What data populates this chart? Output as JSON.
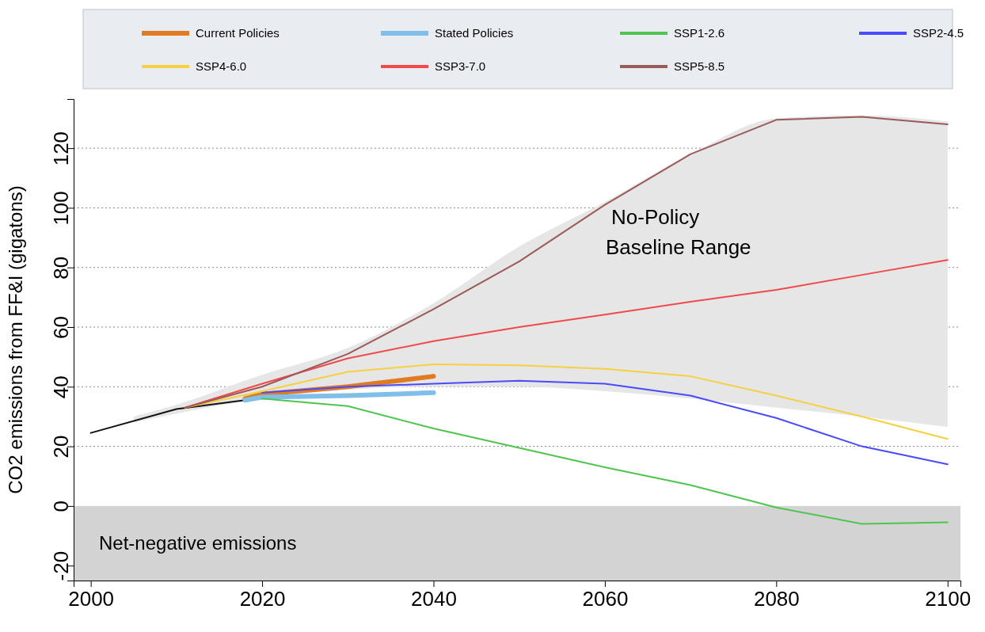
{
  "chart_data": {
    "type": "line",
    "ylabel": "CO2 emissions from FF&I (gigatons)",
    "xlim": [
      1998,
      2101.5
    ],
    "ylim": [
      -25,
      136.5
    ],
    "xticks": [
      2000,
      2020,
      2040,
      2060,
      2080,
      2100
    ],
    "yticks": [
      -20,
      0,
      20,
      40,
      60,
      80,
      100,
      120
    ],
    "grid": "y",
    "legend": "top",
    "bands": [
      {
        "axis": "y",
        "from": -25,
        "to": 0,
        "label": "Net-negative emissions",
        "color": "#d3d3d3"
      }
    ],
    "annotations": [
      "No-Policy\nBaseline Range"
    ],
    "series": [
      {
        "color": "#e6e6e6",
        "x": [
          2005,
          2010,
          2020,
          2030,
          2040,
          2050,
          2060,
          2070,
          2080,
          2090,
          2100
        ],
        "values": [
          null,
          null,
          null,
          null,
          null,
          null,
          null,
          null,
          null,
          null,
          null
        ],
        "lower": [
          28,
          31,
          36,
          39,
          40,
          40,
          38.5,
          36,
          33,
          30,
          26.5
        ],
        "upper": [
          30,
          34,
          44,
          53,
          68,
          87,
          102,
          118,
          130,
          131,
          129
        ]
      },
      {
        "color": "#111111",
        "x": [
          2000,
          2010,
          2018
        ],
        "values": [
          24.5,
          32.5,
          35.5
        ]
      },
      {
        "name": "Current Policies",
        "color": "#e07b22",
        "x": [
          2018,
          2020,
          2030,
          2040
        ],
        "values": [
          36,
          37.5,
          40,
          43.5
        ]
      },
      {
        "name": "Stated Policies",
        "color": "#7fbfea",
        "x": [
          2018,
          2020,
          2030,
          2040
        ],
        "values": [
          35.5,
          36.5,
          37,
          38
        ]
      },
      {
        "name": "SSP1-2.6",
        "color": "#4fc44f",
        "x": [
          2020,
          2030,
          2040,
          2050,
          2060,
          2070,
          2080,
          2090,
          2100
        ],
        "values": [
          36,
          33.5,
          26,
          19.5,
          13,
          7,
          -0.5,
          -6,
          -5.5
        ]
      },
      {
        "name": "SSP2-4.5",
        "color": "#4a4aff",
        "x": [
          2020,
          2030,
          2040,
          2050,
          2060,
          2070,
          2080,
          2090,
          2100
        ],
        "values": [
          38,
          40,
          41,
          42,
          41,
          37,
          29.5,
          20,
          14
        ]
      },
      {
        "name": "SSP4-6.0",
        "color": "#f5d040",
        "x": [
          2011,
          2020,
          2030,
          2040,
          2050,
          2060,
          2070,
          2080,
          2090,
          2100
        ],
        "values": [
          33,
          38.5,
          45,
          47.5,
          47.2,
          46,
          43.5,
          37,
          30,
          22.5
        ]
      },
      {
        "name": "SSP3-7.0",
        "color": "#f04a4a",
        "x": [
          2011,
          2020,
          2030,
          2040,
          2050,
          2060,
          2070,
          2080,
          2090,
          2100
        ],
        "values": [
          33,
          41,
          49.5,
          55.3,
          60,
          64.2,
          68.5,
          72.5,
          77.5,
          82.5
        ]
      },
      {
        "name": "SSP5-8.5",
        "color": "#9a5a5a",
        "x": [
          2011,
          2020,
          2030,
          2040,
          2050,
          2060,
          2070,
          2080,
          2090,
          2100
        ],
        "values": [
          33,
          40,
          51,
          66,
          82,
          101,
          118,
          129.5,
          130.5,
          128
        ]
      }
    ]
  }
}
